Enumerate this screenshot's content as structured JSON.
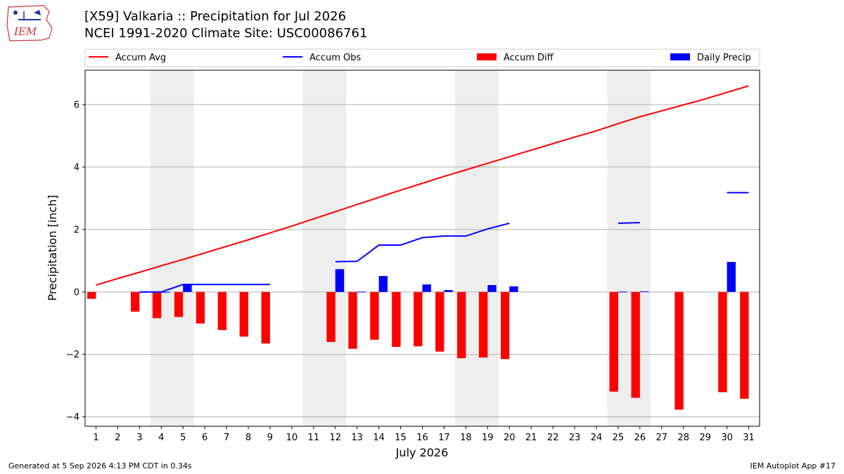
{
  "header": {
    "title_line1": "[X59] Valkaria :: Precipitation for Jul 2026",
    "title_line2": "NCEI 1991-2020 Climate Site: USC00086761"
  },
  "logo": {
    "text": "IEM"
  },
  "footer": {
    "left": "Generated at 5 Sep 2026 4:13 PM CDT in 0.34s",
    "right": "IEM Autoplot App #17"
  },
  "colors": {
    "avg": "#ff0000",
    "obs": "#0000ff",
    "diff": "#ff0000",
    "daily": "#0000ff",
    "weekend": "#eeeeee"
  },
  "chart_data": {
    "type": "bar",
    "xlabel": "July 2026",
    "ylabel": "Precipitation [inch]",
    "ylim": [
      -4.3,
      7.1
    ],
    "yticks": [
      -4,
      -2,
      0,
      2,
      4,
      6
    ],
    "ytick_labels": [
      "−4",
      "−2",
      "0",
      "2",
      "4",
      "6"
    ],
    "days": [
      1,
      2,
      3,
      4,
      5,
      6,
      7,
      8,
      9,
      10,
      11,
      12,
      13,
      14,
      15,
      16,
      17,
      18,
      19,
      20,
      21,
      22,
      23,
      24,
      25,
      26,
      27,
      28,
      29,
      30,
      31
    ],
    "shaded_weekends": [
      [
        4,
        5
      ],
      [
        11,
        12
      ],
      [
        18,
        19
      ],
      [
        25,
        26
      ]
    ],
    "grid": "horizontal",
    "legend": {
      "position": "top",
      "entries": [
        "Accum Avg",
        "Accum Obs",
        "Accum Diff",
        "Daily Precip"
      ]
    },
    "series": [
      {
        "name": "Accum Avg",
        "kind": "line",
        "values": [
          0.22,
          0.43,
          0.63,
          0.84,
          1.04,
          1.25,
          1.46,
          1.67,
          1.89,
          2.11,
          2.34,
          2.57,
          2.8,
          3.03,
          3.26,
          3.48,
          3.7,
          3.91,
          4.12,
          4.33,
          4.54,
          4.75,
          4.96,
          5.16,
          5.39,
          5.61,
          5.8,
          5.99,
          6.18,
          6.39,
          6.6
        ]
      },
      {
        "name": "Accum Obs",
        "kind": "line",
        "values": [
          null,
          null,
          0.0,
          0.0,
          0.24,
          0.24,
          0.24,
          0.24,
          0.24,
          null,
          null,
          0.97,
          0.98,
          1.5,
          1.5,
          1.74,
          1.79,
          1.79,
          2.02,
          2.2,
          null,
          null,
          null,
          null,
          2.2,
          2.22,
          null,
          null,
          null,
          3.18,
          3.18
        ]
      },
      {
        "name": "Accum Diff",
        "kind": "bar",
        "values": [
          -0.22,
          null,
          -0.63,
          -0.84,
          -0.8,
          -1.01,
          -1.22,
          -1.43,
          -1.65,
          null,
          null,
          -1.6,
          -1.82,
          -1.53,
          -1.76,
          -1.74,
          -1.91,
          -2.12,
          -2.1,
          -2.15,
          null,
          null,
          null,
          null,
          -3.19,
          -3.39,
          null,
          -3.77,
          null,
          -3.21,
          -3.42
        ]
      },
      {
        "name": "Daily Precip",
        "kind": "bar",
        "values": [
          null,
          null,
          0.0,
          0.0,
          0.24,
          null,
          null,
          null,
          null,
          null,
          null,
          0.73,
          0.01,
          0.51,
          null,
          0.24,
          0.06,
          null,
          0.22,
          0.18,
          null,
          null,
          null,
          null,
          0.01,
          0.02,
          null,
          null,
          null,
          0.96,
          null
        ]
      }
    ]
  }
}
